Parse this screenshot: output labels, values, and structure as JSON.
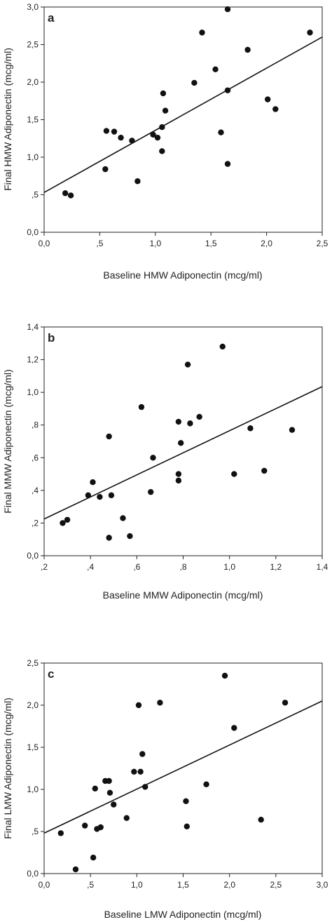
{
  "chart_data": [
    {
      "type": "scatter",
      "panel_label": "a",
      "xlabel": "Baseline HMW Adiponectin (mcg/ml)",
      "ylabel": "Final HMW Adiponectin (mcg/ml)",
      "xlim": [
        0,
        2.5
      ],
      "ylim": [
        0,
        3.0
      ],
      "xticks": [
        0,
        0.5,
        1.0,
        1.5,
        2.0,
        2.5
      ],
      "xtick_labels": [
        "0,0",
        ",5",
        "1,0",
        "1,5",
        "2,0",
        "2,5"
      ],
      "yticks": [
        0,
        0.5,
        1.0,
        1.5,
        2.0,
        2.5,
        3.0
      ],
      "ytick_labels": [
        "0,0",
        ",5",
        "1,0",
        "1,5",
        "2,0",
        "2,5",
        "3,0"
      ],
      "fit_line": {
        "x": [
          0,
          2.5
        ],
        "y": [
          0.53,
          2.6
        ]
      },
      "points": [
        {
          "x": 0.19,
          "y": 0.52
        },
        {
          "x": 0.24,
          "y": 0.49
        },
        {
          "x": 0.55,
          "y": 0.84
        },
        {
          "x": 0.56,
          "y": 1.35
        },
        {
          "x": 0.63,
          "y": 1.34
        },
        {
          "x": 0.69,
          "y": 1.26
        },
        {
          "x": 0.79,
          "y": 1.22
        },
        {
          "x": 0.84,
          "y": 0.68
        },
        {
          "x": 0.98,
          "y": 1.3
        },
        {
          "x": 1.02,
          "y": 1.26
        },
        {
          "x": 1.06,
          "y": 1.08
        },
        {
          "x": 1.06,
          "y": 1.4
        },
        {
          "x": 1.07,
          "y": 1.85
        },
        {
          "x": 1.09,
          "y": 1.62
        },
        {
          "x": 1.35,
          "y": 1.99
        },
        {
          "x": 1.42,
          "y": 2.66
        },
        {
          "x": 1.54,
          "y": 2.17
        },
        {
          "x": 1.59,
          "y": 1.33
        },
        {
          "x": 1.65,
          "y": 0.91
        },
        {
          "x": 1.65,
          "y": 1.89
        },
        {
          "x": 1.65,
          "y": 2.97
        },
        {
          "x": 1.83,
          "y": 2.43
        },
        {
          "x": 2.01,
          "y": 1.77
        },
        {
          "x": 2.08,
          "y": 1.64
        },
        {
          "x": 2.39,
          "y": 2.66
        }
      ]
    },
    {
      "type": "scatter",
      "panel_label": "b",
      "xlabel": "Baseline MMW Adiponectin (mcg/ml)",
      "ylabel": "Final MMW Adiponectin (mcg/ml)",
      "xlim": [
        0.2,
        1.4
      ],
      "ylim": [
        0,
        1.4
      ],
      "xticks": [
        0.2,
        0.4,
        0.6,
        0.8,
        1.0,
        1.2,
        1.4
      ],
      "xtick_labels": [
        ",2",
        ",4",
        ",6",
        ",8",
        "1,0",
        "1,2",
        "1,4"
      ],
      "yticks": [
        0,
        0.2,
        0.4,
        0.6,
        0.8,
        1.0,
        1.2,
        1.4
      ],
      "ytick_labels": [
        "0,0",
        ",2",
        ",4",
        ",6",
        ",8",
        "1,0",
        "1,2",
        "1,4"
      ],
      "fit_line": {
        "x": [
          0.2,
          1.4
        ],
        "y": [
          0.225,
          1.035
        ]
      },
      "points": [
        {
          "x": 0.28,
          "y": 0.2
        },
        {
          "x": 0.3,
          "y": 0.22
        },
        {
          "x": 0.39,
          "y": 0.37
        },
        {
          "x": 0.41,
          "y": 0.45
        },
        {
          "x": 0.44,
          "y": 0.36
        },
        {
          "x": 0.48,
          "y": 0.11
        },
        {
          "x": 0.48,
          "y": 0.73
        },
        {
          "x": 0.49,
          "y": 0.37
        },
        {
          "x": 0.54,
          "y": 0.23
        },
        {
          "x": 0.57,
          "y": 0.12
        },
        {
          "x": 0.62,
          "y": 0.91
        },
        {
          "x": 0.66,
          "y": 0.39
        },
        {
          "x": 0.67,
          "y": 0.6
        },
        {
          "x": 0.78,
          "y": 0.46
        },
        {
          "x": 0.78,
          "y": 0.5
        },
        {
          "x": 0.78,
          "y": 0.82
        },
        {
          "x": 0.79,
          "y": 0.69
        },
        {
          "x": 0.82,
          "y": 1.17
        },
        {
          "x": 0.83,
          "y": 0.81
        },
        {
          "x": 0.87,
          "y": 0.85
        },
        {
          "x": 0.97,
          "y": 1.28
        },
        {
          "x": 1.02,
          "y": 0.5
        },
        {
          "x": 1.09,
          "y": 0.78
        },
        {
          "x": 1.15,
          "y": 0.52
        },
        {
          "x": 1.27,
          "y": 0.77
        }
      ]
    },
    {
      "type": "scatter",
      "panel_label": "c",
      "xlabel": "Baseline LMW Adiponectin (mcg/ml)",
      "ylabel": "Final LMW Adiponectin (mcg/ml)",
      "xlim": [
        0,
        3.0
      ],
      "ylim": [
        0,
        2.5
      ],
      "xticks": [
        0,
        0.5,
        1.0,
        1.5,
        2.0,
        2.5,
        3.0
      ],
      "xtick_labels": [
        "0,0",
        ",5",
        "1,0",
        "1,5",
        "2,0",
        "2,5",
        "3,0"
      ],
      "yticks": [
        0,
        0.5,
        1.0,
        1.5,
        2.0,
        2.5
      ],
      "ytick_labels": [
        "0,0",
        ",5",
        "1,0",
        "1,5",
        "2,0",
        "2,5"
      ],
      "fit_line": {
        "x": [
          0,
          3.0
        ],
        "y": [
          0.48,
          2.05
        ]
      },
      "points": [
        {
          "x": 0.18,
          "y": 0.48
        },
        {
          "x": 0.34,
          "y": 0.05
        },
        {
          "x": 0.44,
          "y": 0.57
        },
        {
          "x": 0.53,
          "y": 0.19
        },
        {
          "x": 0.55,
          "y": 1.01
        },
        {
          "x": 0.57,
          "y": 0.53
        },
        {
          "x": 0.61,
          "y": 0.55
        },
        {
          "x": 0.66,
          "y": 1.1
        },
        {
          "x": 0.7,
          "y": 1.1
        },
        {
          "x": 0.71,
          "y": 0.96
        },
        {
          "x": 0.75,
          "y": 0.82
        },
        {
          "x": 0.89,
          "y": 0.66
        },
        {
          "x": 0.97,
          "y": 1.21
        },
        {
          "x": 1.02,
          "y": 2.0
        },
        {
          "x": 1.04,
          "y": 1.21
        },
        {
          "x": 1.06,
          "y": 1.42
        },
        {
          "x": 1.09,
          "y": 1.03
        },
        {
          "x": 1.25,
          "y": 2.03
        },
        {
          "x": 1.53,
          "y": 0.86
        },
        {
          "x": 1.54,
          "y": 0.56
        },
        {
          "x": 1.75,
          "y": 1.06
        },
        {
          "x": 1.95,
          "y": 2.35
        },
        {
          "x": 2.05,
          "y": 1.73
        },
        {
          "x": 2.34,
          "y": 0.64
        },
        {
          "x": 2.6,
          "y": 2.03
        }
      ]
    }
  ]
}
